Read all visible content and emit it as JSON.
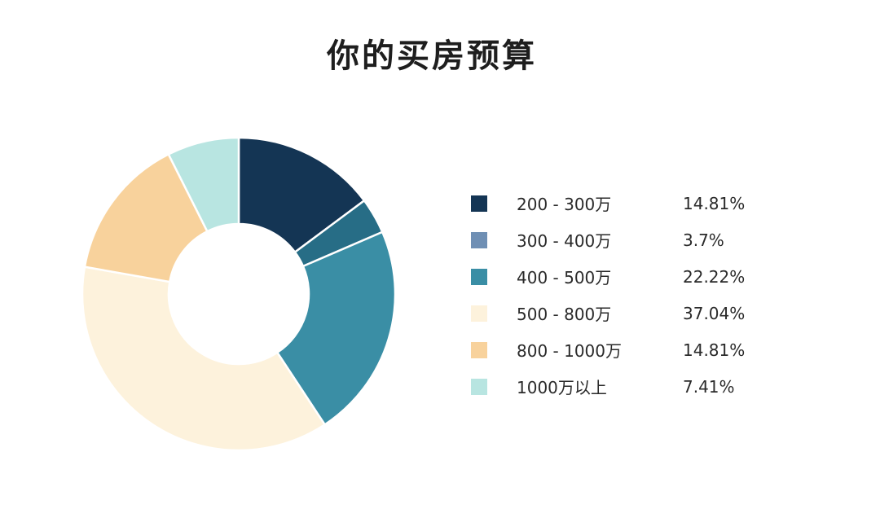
{
  "chart_data": {
    "type": "pie",
    "title": "你的买房预算",
    "categories": [
      "200 - 300万",
      "300 - 400万",
      "400 - 500万",
      "500 - 800万",
      "800 - 1000万",
      "1000万以上"
    ],
    "values": [
      14.81,
      3.7,
      22.22,
      37.04,
      14.81,
      7.41
    ],
    "value_labels": [
      "14.81%",
      "3.7%",
      "22.22%",
      "37.04%",
      "14.81%",
      "7.41%"
    ],
    "unit": "%",
    "donut": true,
    "legend_position": "right",
    "start_angle": "12 o'clock, clockwise"
  },
  "colors": [
    "#143554",
    "#276d86",
    "#3a8ea5",
    "#fdf2dc",
    "#f8d29c",
    "#b8e5e1"
  ],
  "legend_colors": [
    "#143554",
    "#6f8fb4",
    "#3a8ea5",
    "#fdf2dc",
    "#f8d29c",
    "#b8e5e1"
  ],
  "legend": {
    "items": [
      {
        "label": "200 - 300万",
        "value": "14.81%"
      },
      {
        "label": "300 - 400万",
        "value": "3.7%"
      },
      {
        "label": "400 - 500万",
        "value": "22.22%"
      },
      {
        "label": "500 - 800万",
        "value": "37.04%"
      },
      {
        "label": "800 - 1000万",
        "value": "14.81%"
      },
      {
        "label": "1000万以上",
        "value": "7.41%"
      }
    ]
  }
}
